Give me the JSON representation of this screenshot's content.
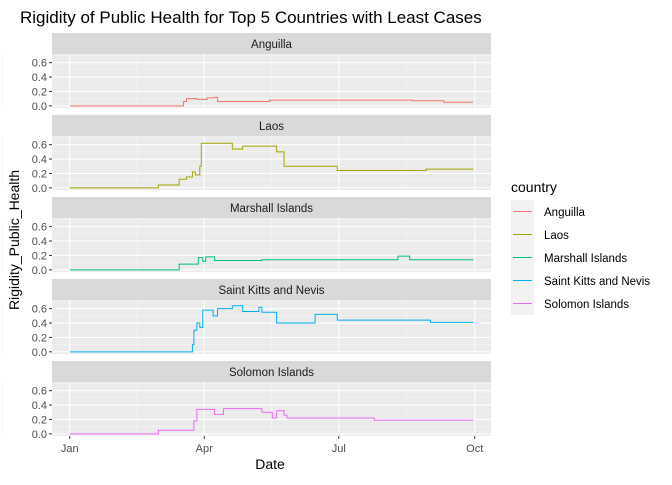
{
  "chart_data": {
    "type": "line",
    "title": "Rigidity of Public Health for Top 5 Countries with Least Cases",
    "xlabel": "Date",
    "ylabel": "Rigidity_Public_Health",
    "x_ticks": [
      "Jan",
      "Apr",
      "Jul",
      "Oct"
    ],
    "x_tick_dates": [
      "2020-01-01",
      "2020-04-01",
      "2020-07-01",
      "2020-10-01"
    ],
    "x_range": [
      "2019-12-20",
      "2020-10-12"
    ],
    "y_ticks": [
      0.0,
      0.2,
      0.4,
      0.6
    ],
    "y_tick_labels": [
      "0.0",
      "0.2",
      "0.4",
      "0.6"
    ],
    "ylim": [
      -0.03,
      0.72
    ],
    "facet_by": "country",
    "legend": {
      "title": "country",
      "position": "right"
    },
    "grid": true,
    "series": [
      {
        "name": "Anguilla",
        "color": "#F8766D",
        "points": [
          [
            "2020-01-01",
            0.0
          ],
          [
            "2020-03-18",
            0.0
          ],
          [
            "2020-03-18",
            0.06
          ],
          [
            "2020-03-20",
            0.06
          ],
          [
            "2020-03-20",
            0.1
          ],
          [
            "2020-03-27",
            0.1
          ],
          [
            "2020-03-27",
            0.09
          ],
          [
            "2020-04-03",
            0.09
          ],
          [
            "2020-04-03",
            0.11
          ],
          [
            "2020-04-08",
            0.11
          ],
          [
            "2020-04-08",
            0.12
          ],
          [
            "2020-04-10",
            0.12
          ],
          [
            "2020-04-10",
            0.06
          ],
          [
            "2020-05-15",
            0.06
          ],
          [
            "2020-05-15",
            0.08
          ],
          [
            "2020-08-20",
            0.08
          ],
          [
            "2020-08-20",
            0.07
          ],
          [
            "2020-09-10",
            0.07
          ],
          [
            "2020-09-10",
            0.05
          ],
          [
            "2020-09-30",
            0.05
          ]
        ]
      },
      {
        "name": "Laos",
        "color": "#A3A500",
        "points": [
          [
            "2020-01-01",
            0.0
          ],
          [
            "2020-03-01",
            0.0
          ],
          [
            "2020-03-01",
            0.04
          ],
          [
            "2020-03-15",
            0.04
          ],
          [
            "2020-03-15",
            0.12
          ],
          [
            "2020-03-20",
            0.12
          ],
          [
            "2020-03-20",
            0.15
          ],
          [
            "2020-03-24",
            0.15
          ],
          [
            "2020-03-24",
            0.22
          ],
          [
            "2020-03-26",
            0.22
          ],
          [
            "2020-03-26",
            0.18
          ],
          [
            "2020-03-29",
            0.18
          ],
          [
            "2020-03-29",
            0.3
          ],
          [
            "2020-03-30",
            0.3
          ],
          [
            "2020-03-30",
            0.62
          ],
          [
            "2020-04-20",
            0.62
          ],
          [
            "2020-04-20",
            0.54
          ],
          [
            "2020-04-27",
            0.54
          ],
          [
            "2020-04-27",
            0.58
          ],
          [
            "2020-05-20",
            0.58
          ],
          [
            "2020-05-20",
            0.5
          ],
          [
            "2020-05-25",
            0.5
          ],
          [
            "2020-05-25",
            0.3
          ],
          [
            "2020-06-30",
            0.3
          ],
          [
            "2020-06-30",
            0.24
          ],
          [
            "2020-08-29",
            0.24
          ],
          [
            "2020-08-29",
            0.26
          ],
          [
            "2020-09-30",
            0.26
          ]
        ]
      },
      {
        "name": "Marshall Islands",
        "color": "#00BF7D",
        "points": [
          [
            "2020-01-01",
            0.0
          ],
          [
            "2020-03-15",
            0.0
          ],
          [
            "2020-03-15",
            0.08
          ],
          [
            "2020-03-28",
            0.08
          ],
          [
            "2020-03-28",
            0.17
          ],
          [
            "2020-03-31",
            0.17
          ],
          [
            "2020-03-31",
            0.12
          ],
          [
            "2020-04-02",
            0.12
          ],
          [
            "2020-04-02",
            0.18
          ],
          [
            "2020-04-08",
            0.18
          ],
          [
            "2020-04-08",
            0.13
          ],
          [
            "2020-05-10",
            0.13
          ],
          [
            "2020-05-10",
            0.14
          ],
          [
            "2020-08-10",
            0.14
          ],
          [
            "2020-08-10",
            0.19
          ],
          [
            "2020-08-18",
            0.19
          ],
          [
            "2020-08-18",
            0.14
          ],
          [
            "2020-09-30",
            0.14
          ]
        ]
      },
      {
        "name": "Saint Kitts and Nevis",
        "color": "#00B0F6",
        "points": [
          [
            "2020-01-01",
            0.0
          ],
          [
            "2020-03-24",
            0.0
          ],
          [
            "2020-03-24",
            0.1
          ],
          [
            "2020-03-25",
            0.1
          ],
          [
            "2020-03-25",
            0.3
          ],
          [
            "2020-03-27",
            0.3
          ],
          [
            "2020-03-27",
            0.4
          ],
          [
            "2020-03-29",
            0.4
          ],
          [
            "2020-03-29",
            0.34
          ],
          [
            "2020-03-31",
            0.34
          ],
          [
            "2020-03-31",
            0.58
          ],
          [
            "2020-04-07",
            0.58
          ],
          [
            "2020-04-07",
            0.5
          ],
          [
            "2020-04-10",
            0.5
          ],
          [
            "2020-04-10",
            0.6
          ],
          [
            "2020-04-20",
            0.6
          ],
          [
            "2020-04-20",
            0.64
          ],
          [
            "2020-04-27",
            0.64
          ],
          [
            "2020-04-27",
            0.56
          ],
          [
            "2020-05-08",
            0.56
          ],
          [
            "2020-05-08",
            0.62
          ],
          [
            "2020-05-10",
            0.62
          ],
          [
            "2020-05-10",
            0.55
          ],
          [
            "2020-05-20",
            0.55
          ],
          [
            "2020-05-20",
            0.4
          ],
          [
            "2020-06-15",
            0.4
          ],
          [
            "2020-06-15",
            0.52
          ],
          [
            "2020-06-30",
            0.52
          ],
          [
            "2020-06-30",
            0.44
          ],
          [
            "2020-09-01",
            0.44
          ],
          [
            "2020-09-01",
            0.41
          ],
          [
            "2020-09-30",
            0.41
          ]
        ]
      },
      {
        "name": "Solomon Islands",
        "color": "#E76BF3",
        "points": [
          [
            "2020-01-01",
            0.0
          ],
          [
            "2020-03-01",
            0.0
          ],
          [
            "2020-03-01",
            0.05
          ],
          [
            "2020-03-25",
            0.05
          ],
          [
            "2020-03-25",
            0.18
          ],
          [
            "2020-03-27",
            0.18
          ],
          [
            "2020-03-27",
            0.34
          ],
          [
            "2020-04-08",
            0.34
          ],
          [
            "2020-04-08",
            0.27
          ],
          [
            "2020-04-14",
            0.27
          ],
          [
            "2020-04-14",
            0.35
          ],
          [
            "2020-05-10",
            0.35
          ],
          [
            "2020-05-10",
            0.3
          ],
          [
            "2020-05-17",
            0.3
          ],
          [
            "2020-05-17",
            0.22
          ],
          [
            "2020-05-20",
            0.22
          ],
          [
            "2020-05-20",
            0.32
          ],
          [
            "2020-05-25",
            0.32
          ],
          [
            "2020-05-25",
            0.26
          ],
          [
            "2020-05-27",
            0.26
          ],
          [
            "2020-05-27",
            0.22
          ],
          [
            "2020-07-25",
            0.22
          ],
          [
            "2020-07-25",
            0.19
          ],
          [
            "2020-09-30",
            0.19
          ]
        ]
      }
    ]
  }
}
